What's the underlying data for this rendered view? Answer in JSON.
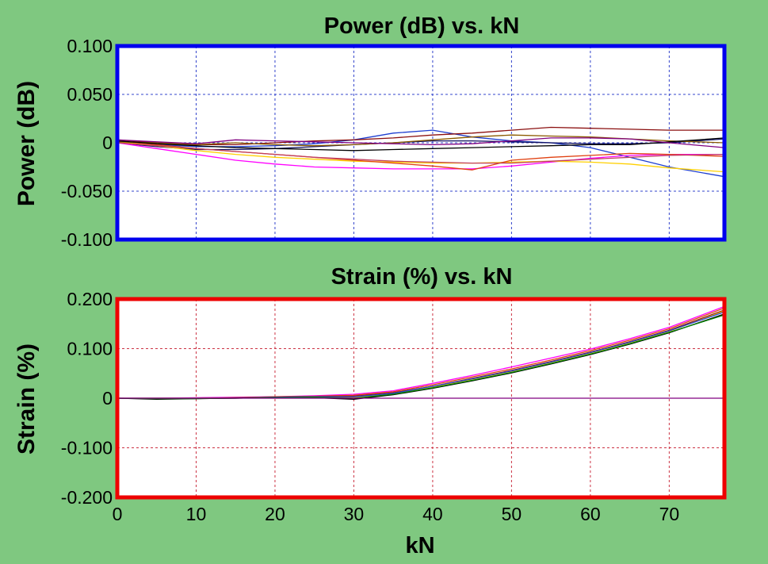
{
  "chart_data": [
    {
      "type": "line",
      "title": "Power (dB) vs. kN",
      "ylabel": "Power (dB)",
      "xlabel": "",
      "xlim": [
        0,
        77
      ],
      "ylim": [
        -0.1,
        0.1
      ],
      "x_ticks": [
        0,
        10,
        20,
        30,
        40,
        50,
        60,
        70
      ],
      "y_ticks": [
        -0.1,
        -0.05,
        0,
        0.05,
        0.1
      ],
      "y_tick_labels": [
        "-0.100",
        "-0.050",
        "0",
        "0.050",
        "0.100"
      ],
      "grid": true,
      "frame_color": "#0000ee",
      "grid_color": "#3344cc",
      "x": [
        0,
        5,
        10,
        15,
        20,
        25,
        30,
        35,
        40,
        45,
        50,
        55,
        60,
        65,
        70,
        77
      ],
      "series": [
        {
          "color": "#1f3fd0",
          "values": [
            0.002,
            -0.002,
            -0.004,
            -0.004,
            -0.003,
            -0.001,
            0.003,
            0.01,
            0.013,
            0.006,
            0.002,
            0.0,
            -0.005,
            -0.015,
            -0.025,
            -0.035
          ]
        },
        {
          "color": "#8b1010",
          "values": [
            0.003,
            0.0,
            -0.002,
            -0.002,
            0.0,
            0.002,
            0.003,
            0.005,
            0.008,
            0.01,
            0.013,
            0.016,
            0.015,
            0.014,
            0.013,
            0.013
          ]
        },
        {
          "color": "#101060",
          "values": [
            0.0,
            -0.004,
            -0.007,
            -0.007,
            -0.006,
            -0.004,
            -0.002,
            0.0,
            0.002,
            0.002,
            0.001,
            0.0,
            -0.001,
            -0.001,
            0.0,
            0.004
          ]
        },
        {
          "color": "#ff00ff",
          "values": [
            0.0,
            -0.006,
            -0.012,
            -0.018,
            -0.022,
            -0.025,
            -0.026,
            -0.027,
            -0.027,
            -0.027,
            -0.024,
            -0.02,
            -0.016,
            -0.013,
            -0.012,
            -0.012
          ]
        },
        {
          "color": "#ffd000",
          "values": [
            0.001,
            -0.003,
            -0.008,
            -0.012,
            -0.015,
            -0.017,
            -0.019,
            -0.02,
            -0.021,
            -0.021,
            -0.02,
            -0.019,
            -0.02,
            -0.022,
            -0.026,
            -0.03
          ]
        },
        {
          "color": "#e04010",
          "values": [
            0.002,
            -0.002,
            -0.006,
            -0.009,
            -0.012,
            -0.015,
            -0.018,
            -0.021,
            -0.024,
            -0.028,
            -0.018,
            -0.015,
            -0.013,
            -0.011,
            -0.012,
            -0.014
          ]
        },
        {
          "color": "#8b5a00",
          "values": [
            0.001,
            0.0,
            -0.002,
            0.0,
            -0.002,
            -0.003,
            -0.002,
            0.0,
            0.003,
            0.006,
            0.008,
            0.007,
            0.006,
            0.004,
            0.002,
            0.0
          ]
        },
        {
          "color": "#000000",
          "values": [
            0.002,
            -0.001,
            -0.003,
            -0.005,
            -0.006,
            -0.007,
            -0.008,
            -0.007,
            -0.006,
            -0.005,
            -0.004,
            -0.003,
            -0.002,
            -0.002,
            0.001,
            0.005
          ]
        },
        {
          "color": "#800080",
          "values": [
            0.003,
            0.001,
            -0.001,
            0.003,
            0.002,
            0.001,
            0.0,
            -0.001,
            -0.002,
            -0.001,
            0.002,
            0.005,
            0.005,
            0.004,
            0.0,
            -0.005
          ]
        },
        {
          "color": "#c04060",
          "values": [
            0.0,
            -0.003,
            -0.006,
            -0.009,
            -0.012,
            -0.015,
            -0.017,
            -0.019,
            -0.02,
            -0.021,
            -0.021,
            -0.019,
            -0.017,
            -0.015,
            -0.013,
            -0.012
          ]
        }
      ]
    },
    {
      "type": "line",
      "title": "Strain (%) vs. kN",
      "ylabel": "Strain (%)",
      "xlabel": "kN",
      "xlim": [
        0,
        77
      ],
      "ylim": [
        -0.2,
        0.2
      ],
      "x_ticks": [
        0,
        10,
        20,
        30,
        40,
        50,
        60,
        70
      ],
      "x_tick_labels": [
        "0",
        "10",
        "20",
        "30",
        "40",
        "50",
        "60",
        "70"
      ],
      "y_ticks": [
        -0.2,
        -0.1,
        0,
        0.1,
        0.2
      ],
      "y_tick_labels": [
        "-0.200",
        "-0.100",
        "0",
        "0.100",
        "0.200"
      ],
      "grid": true,
      "frame_color": "#ee0000",
      "grid_color": "#cc3344",
      "x": [
        0,
        5,
        10,
        15,
        20,
        25,
        30,
        35,
        40,
        45,
        50,
        55,
        60,
        65,
        70,
        77
      ],
      "series": [
        {
          "color": "#ff00ff",
          "values": [
            0.0,
            0.0,
            0.001,
            0.002,
            0.003,
            0.005,
            0.008,
            0.015,
            0.03,
            0.046,
            0.063,
            0.081,
            0.099,
            0.12,
            0.143,
            0.185
          ]
        },
        {
          "color": "#e04010",
          "values": [
            0.0,
            0.0,
            0.0,
            0.001,
            0.003,
            0.004,
            0.006,
            0.013,
            0.027,
            0.043,
            0.059,
            0.077,
            0.096,
            0.117,
            0.14,
            0.182
          ]
        },
        {
          "color": "#8b1010",
          "values": [
            0.0,
            -0.001,
            0.0,
            0.001,
            0.002,
            0.003,
            0.004,
            0.011,
            0.024,
            0.04,
            0.056,
            0.074,
            0.093,
            0.114,
            0.137,
            0.178
          ]
        },
        {
          "color": "#ffd000",
          "values": [
            0.0,
            0.0,
            0.0,
            0.0,
            0.001,
            0.002,
            0.002,
            0.009,
            0.022,
            0.038,
            0.054,
            0.072,
            0.091,
            0.112,
            0.135,
            0.176
          ]
        },
        {
          "color": "#1f3fd0",
          "values": [
            0.0,
            0.0,
            0.0,
            0.0,
            0.002,
            0.003,
            0.003,
            0.01,
            0.024,
            0.039,
            0.055,
            0.073,
            0.092,
            0.113,
            0.136,
            0.174
          ]
        },
        {
          "color": "#000000",
          "values": [
            0.0,
            -0.002,
            -0.001,
            0.0,
            0.001,
            0.001,
            -0.002,
            0.007,
            0.02,
            0.035,
            0.051,
            0.069,
            0.088,
            0.109,
            0.132,
            0.17
          ]
        },
        {
          "color": "#008000",
          "values": [
            0.0,
            -0.001,
            -0.001,
            0.0,
            0.001,
            0.002,
            0.0,
            0.008,
            0.021,
            0.036,
            0.052,
            0.07,
            0.089,
            0.11,
            0.133,
            0.168
          ]
        },
        {
          "color": "#800080",
          "values": [
            0.0,
            0.0,
            0.0,
            0.0,
            0.0,
            0.0,
            0.0,
            0.0,
            0.0,
            0.0,
            0.0,
            0.0,
            0.0,
            0.0,
            0.0,
            0.0
          ]
        }
      ]
    }
  ]
}
